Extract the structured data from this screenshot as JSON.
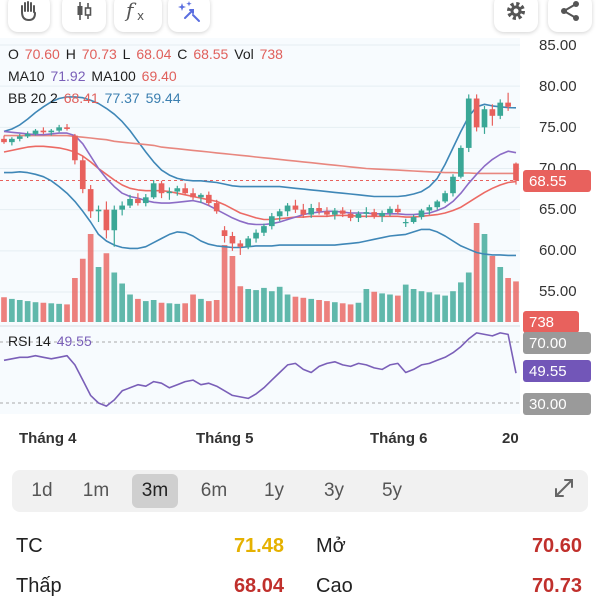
{
  "toolbar": {
    "icons": [
      "hand-icon",
      "candlestick-icon",
      "function-icon",
      "magic-icon",
      "gear-icon",
      "share-icon"
    ]
  },
  "legend": {
    "ohlc": {
      "o_label": "O",
      "o": "70.60",
      "h_label": "H",
      "h": "70.73",
      "l_label": "L",
      "l": "68.04",
      "c_label": "C",
      "c": "68.55",
      "vol_label": "Vol",
      "vol": "738"
    },
    "ma": {
      "ma10_label": "MA10",
      "ma10": "71.92",
      "ma100_label": "MA100",
      "ma100": "69.40"
    },
    "bb": {
      "label": "BB 20 2",
      "mid": "68.41",
      "upper": "77.37",
      "lower": "59.44"
    },
    "rsi": {
      "label": "RSI 14",
      "value": "49.55"
    }
  },
  "y_axis": [
    "85.00",
    "80.00",
    "75.00",
    "70.00",
    "65.00",
    "60.00",
    "55.00"
  ],
  "price_tag": "68.55",
  "volume_tag": "738",
  "rsi_axis": {
    "upper": "70.00",
    "current": "49.55",
    "lower": "30.00"
  },
  "x_axis": [
    "Tháng 4",
    "Tháng 5",
    "Tháng 6",
    "20"
  ],
  "ranges": [
    "1d",
    "1m",
    "3m",
    "6m",
    "1y",
    "3y",
    "5y"
  ],
  "active_range": "3m",
  "stats": {
    "tc_label": "TC",
    "tc": "71.48",
    "mo_label": "Mở",
    "mo": "70.60",
    "thap_label": "Thấp",
    "thap": "68.04",
    "cao_label": "Cao",
    "cao": "70.73"
  },
  "colors": {
    "up": "#3aa796",
    "down": "#e8615d",
    "ma10": "#8c6cc6",
    "ma100": "#e8877f",
    "bb": "#3f87b7",
    "rsi": "#7a5fb8",
    "ref": "#e5b100"
  },
  "chart_data": {
    "type": "candlestick",
    "y_range": [
      50,
      87
    ],
    "candles": [
      [
        73.6,
        74.0,
        73.0,
        73.2
      ],
      [
        73.2,
        73.8,
        72.8,
        73.6
      ],
      [
        73.6,
        74.2,
        73.3,
        73.9
      ],
      [
        73.9,
        74.5,
        73.7,
        74.2
      ],
      [
        74.2,
        74.8,
        74.0,
        74.6
      ],
      [
        74.6,
        75.0,
        74.2,
        74.4
      ],
      [
        74.4,
        74.8,
        74.0,
        74.6
      ],
      [
        74.6,
        75.3,
        74.4,
        75.0
      ],
      [
        75.0,
        75.4,
        74.6,
        74.8
      ],
      [
        74.0,
        74.2,
        70.5,
        71.0
      ],
      [
        71.0,
        71.5,
        67.0,
        67.5
      ],
      [
        67.5,
        68.0,
        64.0,
        64.8
      ],
      [
        64.8,
        65.5,
        63.5,
        65.0
      ],
      [
        65.0,
        66.0,
        61.5,
        62.5
      ],
      [
        62.5,
        65.5,
        60.5,
        65.0
      ],
      [
        65.0,
        66.0,
        64.3,
        65.5
      ],
      [
        65.5,
        66.8,
        65.2,
        66.3
      ],
      [
        66.3,
        67.0,
        65.5,
        65.8
      ],
      [
        65.8,
        66.9,
        65.4,
        66.5
      ],
      [
        66.5,
        68.6,
        66.3,
        68.2
      ],
      [
        68.2,
        68.5,
        66.4,
        67.0
      ],
      [
        67.0,
        67.7,
        66.2,
        67.2
      ],
      [
        67.2,
        67.9,
        66.7,
        67.6
      ],
      [
        67.6,
        68.2,
        66.8,
        67.0
      ],
      [
        67.0,
        67.6,
        66.2,
        66.5
      ],
      [
        66.5,
        67.0,
        65.8,
        66.8
      ],
      [
        66.8,
        67.2,
        65.5,
        65.8
      ],
      [
        65.8,
        66.2,
        64.5,
        64.8
      ],
      [
        62.5,
        63.0,
        61.0,
        61.8
      ],
      [
        61.8,
        62.3,
        60.0,
        60.9
      ],
      [
        60.9,
        61.3,
        59.5,
        60.5
      ],
      [
        60.5,
        61.8,
        60.2,
        61.5
      ],
      [
        61.5,
        62.6,
        61.0,
        62.2
      ],
      [
        62.2,
        63.3,
        61.8,
        63.0
      ],
      [
        63.0,
        64.6,
        62.6,
        64.2
      ],
      [
        64.2,
        65.1,
        63.6,
        64.8
      ],
      [
        64.8,
        65.8,
        64.2,
        65.5
      ],
      [
        65.5,
        66.2,
        64.6,
        65.0
      ],
      [
        65.0,
        65.7,
        64.0,
        64.4
      ],
      [
        64.4,
        65.7,
        64.0,
        65.2
      ],
      [
        65.2,
        65.9,
        64.4,
        64.8
      ],
      [
        64.8,
        65.3,
        64.1,
        64.4
      ],
      [
        64.4,
        65.2,
        63.8,
        64.9
      ],
      [
        64.9,
        65.3,
        64.1,
        64.5
      ],
      [
        64.5,
        65.0,
        63.6,
        64.0
      ],
      [
        64.0,
        64.8,
        63.5,
        64.5
      ],
      [
        64.5,
        65.3,
        64.0,
        64.7
      ],
      [
        64.7,
        65.1,
        63.9,
        64.2
      ],
      [
        64.2,
        64.9,
        63.5,
        64.6
      ],
      [
        64.6,
        65.4,
        64.2,
        65.1
      ],
      [
        65.1,
        65.6,
        64.4,
        64.7
      ],
      [
        63.4,
        63.9,
        62.9,
        63.5
      ],
      [
        63.5,
        64.4,
        63.3,
        64.1
      ],
      [
        64.1,
        65.1,
        63.8,
        64.9
      ],
      [
        64.9,
        65.6,
        64.4,
        65.3
      ],
      [
        65.3,
        66.2,
        65.0,
        66.0
      ],
      [
        66.0,
        67.3,
        65.8,
        67.0
      ],
      [
        67.0,
        69.3,
        66.6,
        69.0
      ],
      [
        69.0,
        72.8,
        68.8,
        72.5
      ],
      [
        72.5,
        79.0,
        72.0,
        78.5
      ],
      [
        78.5,
        79.0,
        74.5,
        75.0
      ],
      [
        75.0,
        77.6,
        74.2,
        77.2
      ],
      [
        77.2,
        77.8,
        75.2,
        76.4
      ],
      [
        76.4,
        78.4,
        76.0,
        78.0
      ],
      [
        78.0,
        79.2,
        77.0,
        77.5
      ],
      [
        70.6,
        70.73,
        68.04,
        68.55
      ]
    ],
    "volume": [
      450,
      420,
      400,
      380,
      360,
      350,
      340,
      330,
      320,
      800,
      1150,
      1600,
      1000,
      1250,
      900,
      700,
      500,
      420,
      380,
      400,
      350,
      340,
      330,
      340,
      500,
      420,
      380,
      400,
      1400,
      1200,
      650,
      600,
      580,
      620,
      560,
      640,
      500,
      460,
      440,
      420,
      400,
      380,
      360,
      340,
      320,
      350,
      600,
      550,
      520,
      500,
      480,
      680,
      600,
      560,
      540,
      500,
      480,
      560,
      720,
      900,
      1800,
      1600,
      1200,
      1000,
      800,
      738
    ],
    "rsi": [
      58,
      59,
      60,
      60,
      61,
      60,
      59,
      60,
      61,
      55,
      45,
      35,
      30,
      28,
      32,
      38,
      40,
      42,
      41,
      44,
      43,
      40,
      42,
      44,
      45,
      42,
      43,
      41,
      38,
      35,
      34,
      33,
      36,
      40,
      45,
      50,
      55,
      56,
      52,
      50,
      54,
      56,
      57,
      55,
      54,
      56,
      55,
      53,
      52,
      55,
      56,
      50,
      52,
      55,
      56,
      58,
      60,
      63,
      67,
      72,
      76,
      75,
      74,
      76,
      75,
      49.55
    ],
    "ma10": [
      74.5,
      74.4,
      74.3,
      74.2,
      74.1,
      74.1,
      74.2,
      74.3,
      74.3,
      74.0,
      73.0,
      71.5,
      70.0,
      68.8,
      67.8,
      67.0,
      66.6,
      66.4,
      66.1,
      65.9,
      65.8,
      65.8,
      65.9,
      66.0,
      66.1,
      65.9,
      65.5,
      65.0,
      64.5,
      64.0,
      63.6,
      63.3,
      63.2,
      63.2,
      63.3,
      63.5,
      63.8,
      64.1,
      64.4,
      64.6,
      64.7,
      64.8,
      64.8,
      64.7,
      64.6,
      64.6,
      64.6,
      64.5,
      64.5,
      64.5,
      64.5,
      64.4,
      64.4,
      64.5,
      64.6,
      64.9,
      65.3,
      66.0,
      67.0,
      68.2,
      69.3,
      70.3,
      71.1,
      71.7,
      72.1,
      71.92
    ],
    "ma100": [
      74.0,
      74.0,
      74.0,
      74.0,
      74.0,
      74.0,
      74.0,
      74.0,
      74.0,
      73.9,
      73.8,
      73.7,
      73.6,
      73.5,
      73.3,
      73.2,
      73.1,
      73.0,
      72.9,
      72.8,
      72.6,
      72.5,
      72.4,
      72.3,
      72.2,
      72.1,
      72.0,
      71.9,
      71.8,
      71.7,
      71.6,
      71.5,
      71.4,
      71.3,
      71.2,
      71.1,
      71.0,
      70.9,
      70.8,
      70.7,
      70.6,
      70.5,
      70.4,
      70.3,
      70.2,
      70.1,
      70.0,
      69.95,
      69.9,
      69.85,
      69.8,
      69.75,
      69.7,
      69.65,
      69.6,
      69.55,
      69.5,
      69.5,
      69.45,
      69.45,
      69.4,
      69.4,
      69.4,
      69.4,
      69.4,
      69.4
    ],
    "bb_mid": [
      72.0,
      72.2,
      72.4,
      72.6,
      72.7,
      72.7,
      72.6,
      72.5,
      72.3,
      72.0,
      71.5,
      70.8,
      70.0,
      69.3,
      68.6,
      68.0,
      67.6,
      67.4,
      67.3,
      67.3,
      67.3,
      67.2,
      67.0,
      66.8,
      66.6,
      66.4,
      66.2,
      66.0,
      65.6,
      65.1,
      64.6,
      64.3,
      64.0,
      63.8,
      63.8,
      63.9,
      64.0,
      64.1,
      64.1,
      64.2,
      64.2,
      64.2,
      64.3,
      64.3,
      64.3,
      64.2,
      64.2,
      64.2,
      64.2,
      64.2,
      64.2,
      64.1,
      64.1,
      64.2,
      64.3,
      64.4,
      64.6,
      64.9,
      65.3,
      65.9,
      66.5,
      67.1,
      67.6,
      68.0,
      68.3,
      68.41
    ],
    "bb_upper": [
      74.5,
      74.8,
      75.3,
      76.0,
      76.8,
      77.5,
      78.1,
      78.5,
      78.7,
      78.7,
      78.6,
      78.3,
      77.9,
      77.3,
      76.6,
      75.7,
      74.6,
      73.3,
      72.0,
      70.8,
      69.8,
      69.2,
      68.8,
      68.6,
      68.5,
      68.5,
      68.4,
      68.3,
      68.1,
      67.9,
      67.8,
      67.8,
      67.8,
      67.8,
      67.8,
      67.8,
      67.7,
      67.6,
      67.5,
      67.4,
      67.3,
      67.2,
      67.1,
      67.0,
      66.9,
      66.8,
      66.7,
      66.6,
      66.6,
      66.6,
      66.6,
      66.7,
      66.9,
      67.2,
      67.8,
      68.8,
      70.5,
      72.5,
      74.5,
      76.3,
      77.5,
      77.8,
      77.6,
      77.5,
      77.4,
      77.37
    ],
    "bb_lower": [
      69.5,
      69.5,
      69.6,
      69.5,
      69.3,
      69.0,
      68.5,
      67.8,
      67.0,
      66.0,
      64.8,
      63.5,
      62.0,
      61.2,
      60.7,
      60.4,
      60.3,
      60.3,
      60.5,
      61.0,
      61.5,
      62.0,
      62.3,
      62.2,
      61.8,
      61.2,
      60.8,
      60.6,
      60.5,
      60.4,
      60.4,
      60.5,
      60.6,
      60.6,
      60.6,
      60.7,
      60.7,
      60.7,
      60.7,
      60.7,
      60.7,
      60.7,
      60.7,
      60.8,
      60.9,
      61.0,
      61.2,
      61.4,
      61.6,
      61.8,
      61.9,
      62.0,
      62.3,
      62.6,
      62.6,
      62.3,
      61.8,
      61.2,
      60.6,
      60.2,
      59.8,
      59.6,
      59.5,
      59.5,
      59.44,
      59.44
    ]
  }
}
